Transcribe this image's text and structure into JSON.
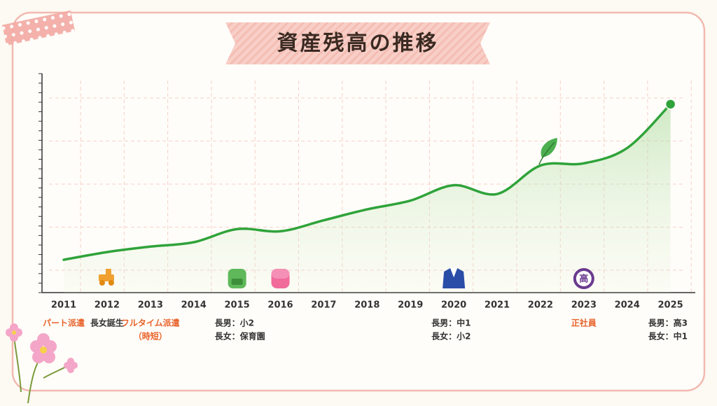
{
  "chart_data": {
    "type": "line",
    "title": "資産残高の推移",
    "categories": [
      "2011",
      "2012",
      "2013",
      "2014",
      "2015",
      "2016",
      "2017",
      "2018",
      "2019",
      "2020",
      "2021",
      "2022",
      "2023",
      "2024",
      "2025"
    ],
    "series": [
      {
        "name": "資産残高",
        "color": "#2fa33a",
        "values": [
          15,
          18.5,
          21,
          23,
          29,
          28,
          33,
          38,
          42,
          49,
          45,
          58,
          59,
          66,
          86
        ]
      }
    ],
    "ylim": [
      0,
      100
    ],
    "grid": true,
    "events": [
      {
        "lines": [
          "パート派遣"
        ],
        "color": "#e8622a"
      },
      {
        "lines": [
          "長女誕生"
        ],
        "color": "#333333"
      },
      {
        "lines": [
          "フルタイム派遣",
          "（時短）"
        ],
        "color": "#e8622a"
      },
      null,
      {
        "lines": [
          "長男：小2",
          "長女：保育園"
        ],
        "color": "#333333"
      },
      null,
      null,
      null,
      null,
      {
        "lines": [
          "長男：中1",
          "長女：小2"
        ],
        "color": "#333333"
      },
      null,
      null,
      {
        "lines": [
          "正社員"
        ],
        "color": "#e8622a"
      },
      null,
      {
        "lines": [
          "長男：高3",
          "長女：中1"
        ],
        "color": "#333333"
      }
    ],
    "emblem_text": "高"
  }
}
